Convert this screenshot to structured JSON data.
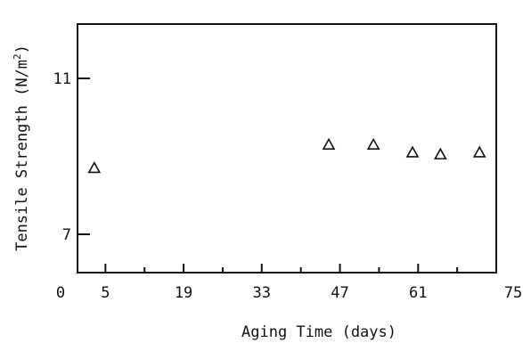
{
  "chart_data": {
    "type": "scatter",
    "xlabel": "Aging Time (days)",
    "ylabel_main": "Tensile Strength (N/m",
    "ylabel_sup": "2",
    "ylabel_close": ")",
    "xlim": [
      0,
      75
    ],
    "ylim": [
      6,
      13
    ],
    "x_ticks": [
      {
        "value": 0,
        "label": "0"
      },
      {
        "value": 5,
        "label": "5"
      },
      {
        "value": 19,
        "label": "19"
      },
      {
        "value": 33,
        "label": "33"
      },
      {
        "value": 47,
        "label": "47"
      },
      {
        "value": 61,
        "label": "61"
      },
      {
        "value": 75,
        "label": "75"
      }
    ],
    "x_minor_ticks": [
      12,
      26,
      40,
      54,
      68
    ],
    "y_ticks": [
      {
        "value": 7,
        "label": "7"
      },
      {
        "value": 11,
        "label": "11"
      }
    ],
    "marker": "open-triangle",
    "grid": false,
    "points": [
      {
        "x": 3,
        "y": 8.7
      },
      {
        "x": 45,
        "y": 9.3
      },
      {
        "x": 53,
        "y": 9.3
      },
      {
        "x": 60,
        "y": 9.1
      },
      {
        "x": 65,
        "y": 9.05
      },
      {
        "x": 72,
        "y": 9.1
      }
    ]
  }
}
